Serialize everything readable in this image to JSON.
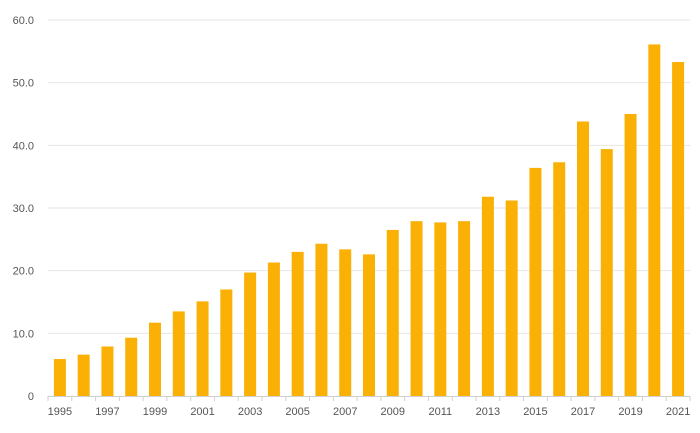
{
  "colors": {
    "bar": "#FAB005",
    "grid": "#e6e6e6",
    "axis": "#cfcfcf",
    "text": "#555555"
  },
  "chart_data": {
    "type": "bar",
    "title": "",
    "xlabel": "",
    "ylabel": "",
    "grid": true,
    "ylim": [
      0,
      60
    ],
    "y_ticks": [
      {
        "value": 0,
        "label": "0"
      },
      {
        "value": 10,
        "label": "10.0"
      },
      {
        "value": 20,
        "label": "20.0"
      },
      {
        "value": 30,
        "label": "30.0"
      },
      {
        "value": 40,
        "label": "40.0"
      },
      {
        "value": 50,
        "label": "50.0"
      },
      {
        "value": 60,
        "label": "60.0"
      }
    ],
    "categories": [
      "1995",
      "1996",
      "1997",
      "1998",
      "1999",
      "2000",
      "2001",
      "2002",
      "2003",
      "2004",
      "2005",
      "2006",
      "2007",
      "2008",
      "2009",
      "2010",
      "2011",
      "2012",
      "2013",
      "2014",
      "2015",
      "2016",
      "2017",
      "2018",
      "2019",
      "2020",
      "2021"
    ],
    "x_tick_labels": [
      "1995",
      "1997",
      "1999",
      "2001",
      "2003",
      "2005",
      "2007",
      "2009",
      "2011",
      "2013",
      "2015",
      "2017",
      "2019",
      "2021"
    ],
    "values": [
      5.9,
      6.6,
      7.9,
      9.3,
      11.7,
      13.5,
      15.1,
      17.0,
      19.7,
      21.3,
      23.0,
      24.3,
      23.4,
      22.6,
      26.5,
      27.9,
      27.7,
      27.9,
      31.8,
      31.2,
      36.4,
      37.3,
      43.8,
      39.4,
      45.0,
      56.1,
      53.3
    ]
  }
}
